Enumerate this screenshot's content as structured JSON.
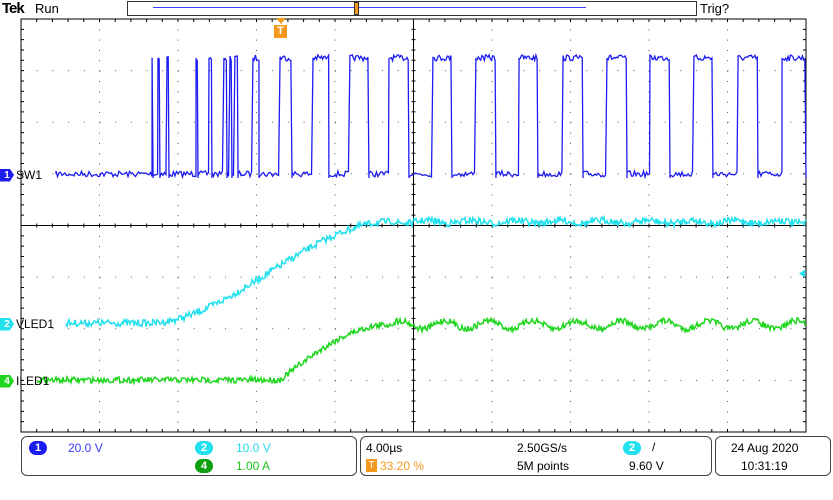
{
  "header": {
    "brand": "Tek",
    "state": "Run",
    "trigger_status": "Trig?"
  },
  "channels": [
    {
      "id": "1",
      "label": "SW1",
      "scale": "20.0 V",
      "color": "#1c1cf0"
    },
    {
      "id": "2",
      "label": "VLED1",
      "scale": "10.0 V",
      "color": "#22e0ee"
    },
    {
      "id": "4",
      "label": "ILED1",
      "scale": "1.00 A",
      "color": "#1fd61f"
    }
  ],
  "timebase": {
    "scale": "4.00µs",
    "trigger_position": "33.20 %",
    "sample_rate": "2.50GS/s",
    "record_length": "5M points"
  },
  "trigger": {
    "source": "2",
    "slope": "/",
    "level": "9.60 V",
    "marker": "T"
  },
  "datetime": {
    "date": "24 Aug 2020",
    "time": "10:31:19"
  },
  "colors": {
    "trigger": "#f39a1e",
    "grid": "#000000"
  },
  "chart_data": {
    "type": "line",
    "xlabel": "",
    "ylabel": "",
    "x_unit": "µs",
    "x_range": [
      0,
      40
    ],
    "x_divisions": 10,
    "y_divisions": 8,
    "grid": true,
    "series": [
      {
        "name": "SW1",
        "unit": "V",
        "low": 0,
        "high": 45,
        "pulses_us": [
          [
            6.68,
            6.73
          ],
          [
            6.98,
            7.08
          ],
          [
            7.44,
            7.54
          ],
          [
            8.92,
            9.02
          ],
          [
            9.58,
            9.73
          ],
          [
            10.34,
            10.5
          ],
          [
            10.65,
            10.75
          ],
          [
            10.9,
            11.06
          ],
          [
            11.82,
            12.13
          ],
          [
            13.2,
            13.81
          ],
          [
            14.88,
            15.69
          ],
          [
            16.76,
            17.73
          ],
          [
            18.75,
            19.77
          ],
          [
            20.99,
            21.96
          ],
          [
            23.18,
            24.2
          ],
          [
            25.38,
            26.34
          ],
          [
            27.62,
            28.64
          ],
          [
            29.86,
            30.88
          ],
          [
            32.05,
            33.07
          ],
          [
            34.29,
            35.26
          ],
          [
            36.54,
            37.55
          ],
          [
            38.78,
            40
          ]
        ]
      },
      {
        "name": "VLED1",
        "unit": "V",
        "initial": 0,
        "final": 19.6,
        "rise_start_us": 6.5,
        "rise_end_us": 18.8
      },
      {
        "name": "ILED1",
        "unit": "A",
        "initial": 0,
        "final": 1.07,
        "rise_start_us": 13.2,
        "rise_end_us": 18.8,
        "ripple_amplitude": 0.08,
        "ripple_period_us": 2.24
      }
    ]
  }
}
